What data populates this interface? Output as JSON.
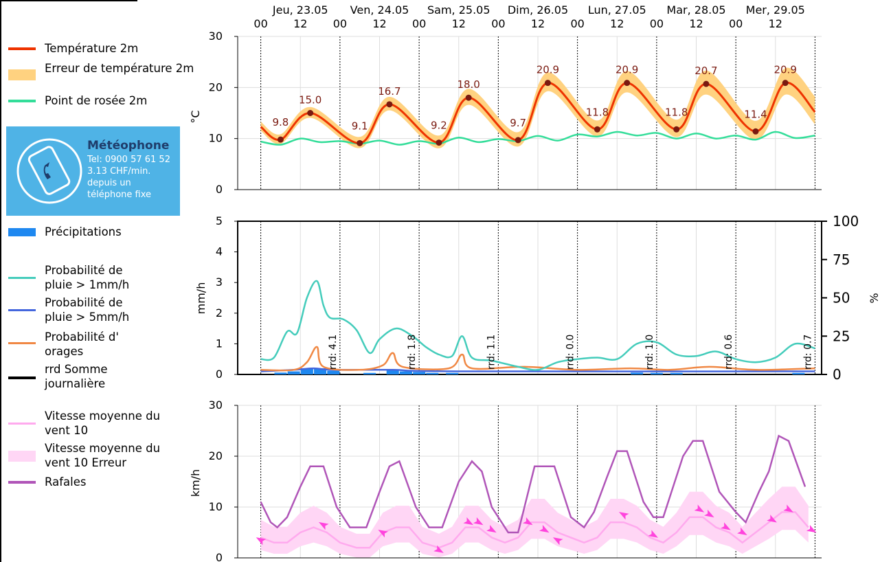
{
  "legend": {
    "items": [
      {
        "label": "Température 2m",
        "color": "#ee3300"
      },
      {
        "label": "Erreur de température 2m",
        "color": "#ffd280"
      },
      {
        "label": "Point de rosée 2m",
        "color": "#33dd99"
      },
      {
        "label": "Précipitations",
        "color": "#1e88f0"
      },
      {
        "label": "Probabilité de pluie > 1mm/h",
        "color": "#44ccbb"
      },
      {
        "label": "Probabilité de pluie > 5mm/h",
        "color": "#4466dd"
      },
      {
        "label": "Probabilité d' orages",
        "color": "#f08844"
      },
      {
        "label": "rrd Somme journalière",
        "color": "#000000"
      },
      {
        "label": "Vitesse moyenne du vent 10",
        "color": "#ffaaee"
      },
      {
        "label": "Vitesse moyenne du vent 10 Erreur",
        "color": "#ffd6f5"
      },
      {
        "label": "Rafales",
        "color": "#b055b8"
      }
    ]
  },
  "promo": {
    "brand": "Météophone",
    "lines": [
      "Tel: 0900 57 61 52",
      "3.13 CHF/min.",
      "depuis un",
      "téléphone fixe"
    ],
    "icon": "phone-icon"
  },
  "chart_data": [
    {
      "type": "line",
      "ylabel": "°C",
      "ylim": [
        0,
        30
      ],
      "yticks": [
        "0",
        "10",
        "20",
        "30"
      ],
      "days": [
        "Jeu, 23.05",
        "Ven, 24.05",
        "Sam, 25.05",
        "Dim, 26.05",
        "Lun, 27.05",
        "Mar, 28.05",
        "Mer, 29.05"
      ],
      "hour_ticks": [
        "00",
        "12",
        "00",
        "12",
        "00",
        "12",
        "00",
        "12",
        "00",
        "12",
        "00",
        "12",
        "00",
        "12"
      ],
      "x_range_hours": [
        0,
        168
      ],
      "grid": true,
      "extremes": [
        {
          "h": 6,
          "v": 9.8,
          "label": "9.8"
        },
        {
          "h": 15,
          "v": 15.0,
          "label": "15.0"
        },
        {
          "h": 30,
          "v": 9.1,
          "label": "9.1"
        },
        {
          "h": 39,
          "v": 16.7,
          "label": "16.7"
        },
        {
          "h": 54,
          "v": 9.2,
          "label": "9.2"
        },
        {
          "h": 63,
          "v": 18.0,
          "label": "18.0"
        },
        {
          "h": 78,
          "v": 9.7,
          "label": "9.7"
        },
        {
          "h": 87,
          "v": 20.9,
          "label": "20.9"
        },
        {
          "h": 102,
          "v": 11.8,
          "label": "11.8"
        },
        {
          "h": 111,
          "v": 20.9,
          "label": "20.9"
        },
        {
          "h": 126,
          "v": 11.8,
          "label": "11.8"
        },
        {
          "h": 135,
          "v": 20.7,
          "label": "20.7"
        },
        {
          "h": 150,
          "v": 11.4,
          "label": "11.4"
        },
        {
          "h": 159,
          "v": 20.9,
          "label": "20.9"
        }
      ],
      "temperature": {
        "start": 12.3,
        "end": 15.2
      },
      "temperature_error_halfwidth": [
        1.0,
        3.0
      ],
      "dewpoint": [
        {
          "h": 0,
          "v": 9.4
        },
        {
          "h": 6,
          "v": 8.8
        },
        {
          "h": 12,
          "v": 10.0
        },
        {
          "h": 18,
          "v": 9.3
        },
        {
          "h": 24,
          "v": 9.5
        },
        {
          "h": 30,
          "v": 9.0
        },
        {
          "h": 36,
          "v": 9.6
        },
        {
          "h": 42,
          "v": 8.8
        },
        {
          "h": 48,
          "v": 9.5
        },
        {
          "h": 54,
          "v": 9.0
        },
        {
          "h": 60,
          "v": 10.2
        },
        {
          "h": 66,
          "v": 9.3
        },
        {
          "h": 72,
          "v": 9.9
        },
        {
          "h": 78,
          "v": 9.5
        },
        {
          "h": 84,
          "v": 10.5
        },
        {
          "h": 90,
          "v": 9.6
        },
        {
          "h": 96,
          "v": 10.8
        },
        {
          "h": 102,
          "v": 10.4
        },
        {
          "h": 108,
          "v": 11.3
        },
        {
          "h": 114,
          "v": 10.6
        },
        {
          "h": 120,
          "v": 11.1
        },
        {
          "h": 126,
          "v": 10.0
        },
        {
          "h": 132,
          "v": 11.0
        },
        {
          "h": 138,
          "v": 10.0
        },
        {
          "h": 144,
          "v": 10.6
        },
        {
          "h": 150,
          "v": 9.8
        },
        {
          "h": 156,
          "v": 11.3
        },
        {
          "h": 162,
          "v": 10.1
        },
        {
          "h": 168,
          "v": 10.6
        }
      ]
    },
    {
      "type": "line",
      "ylabel": "mm/h",
      "ylabel_right": "%",
      "ylim": [
        0,
        5
      ],
      "ylim_right": [
        0,
        100
      ],
      "yticks": [
        "0",
        "1",
        "2",
        "3",
        "4",
        "5"
      ],
      "yticks_right": [
        "0",
        "25",
        "50",
        "75",
        "100"
      ],
      "rrd_labels": [
        {
          "h": 24,
          "label": "rrd: 4.1"
        },
        {
          "h": 48,
          "label": "rrd: 1.8"
        },
        {
          "h": 72,
          "label": "rrd: 1.1"
        },
        {
          "h": 96,
          "label": "rrd: 0.0"
        },
        {
          "h": 120,
          "label": "rrd: 1.0"
        },
        {
          "h": 144,
          "label": "rrd: 0.6"
        },
        {
          "h": 168,
          "label": "rrd: 0.7"
        }
      ],
      "prob_rain_1mm": [
        {
          "h": 0,
          "v": 10
        },
        {
          "h": 4,
          "v": 11
        },
        {
          "h": 8,
          "v": 28
        },
        {
          "h": 11,
          "v": 27
        },
        {
          "h": 14,
          "v": 50
        },
        {
          "h": 17,
          "v": 61
        },
        {
          "h": 19,
          "v": 45
        },
        {
          "h": 21,
          "v": 37
        },
        {
          "h": 25,
          "v": 36
        },
        {
          "h": 29,
          "v": 29
        },
        {
          "h": 33,
          "v": 14
        },
        {
          "h": 36,
          "v": 23
        },
        {
          "h": 41,
          "v": 30
        },
        {
          "h": 46,
          "v": 25
        },
        {
          "h": 50,
          "v": 18
        },
        {
          "h": 54,
          "v": 13
        },
        {
          "h": 58,
          "v": 12
        },
        {
          "h": 61,
          "v": 25
        },
        {
          "h": 64,
          "v": 11
        },
        {
          "h": 70,
          "v": 9
        },
        {
          "h": 78,
          "v": 5
        },
        {
          "h": 84,
          "v": 3
        },
        {
          "h": 90,
          "v": 8
        },
        {
          "h": 96,
          "v": 10
        },
        {
          "h": 102,
          "v": 11
        },
        {
          "h": 108,
          "v": 10
        },
        {
          "h": 114,
          "v": 20
        },
        {
          "h": 120,
          "v": 21
        },
        {
          "h": 126,
          "v": 13
        },
        {
          "h": 132,
          "v": 12
        },
        {
          "h": 138,
          "v": 15
        },
        {
          "h": 144,
          "v": 10
        },
        {
          "h": 150,
          "v": 8
        },
        {
          "h": 156,
          "v": 11
        },
        {
          "h": 162,
          "v": 20
        },
        {
          "h": 168,
          "v": 17
        }
      ],
      "prob_rain_5mm": [
        {
          "h": 0,
          "v": 2
        },
        {
          "h": 10,
          "v": 3
        },
        {
          "h": 16,
          "v": 4
        },
        {
          "h": 22,
          "v": 3
        },
        {
          "h": 40,
          "v": 3
        },
        {
          "h": 60,
          "v": 2
        },
        {
          "h": 168,
          "v": 2
        }
      ],
      "prob_thunder": [
        {
          "h": 0,
          "v": 3
        },
        {
          "h": 10,
          "v": 3
        },
        {
          "h": 14,
          "v": 8
        },
        {
          "h": 17,
          "v": 18
        },
        {
          "h": 19,
          "v": 5
        },
        {
          "h": 30,
          "v": 3
        },
        {
          "h": 37,
          "v": 6
        },
        {
          "h": 40,
          "v": 14
        },
        {
          "h": 43,
          "v": 5
        },
        {
          "h": 57,
          "v": 4
        },
        {
          "h": 61,
          "v": 13
        },
        {
          "h": 64,
          "v": 4
        },
        {
          "h": 80,
          "v": 5
        },
        {
          "h": 96,
          "v": 3
        },
        {
          "h": 112,
          "v": 4
        },
        {
          "h": 124,
          "v": 3
        },
        {
          "h": 136,
          "v": 5
        },
        {
          "h": 150,
          "v": 3
        },
        {
          "h": 168,
          "v": 4
        }
      ],
      "precip_bars": [
        {
          "h": 6,
          "v": 0.06
        },
        {
          "h": 10,
          "v": 0.1
        },
        {
          "h": 14,
          "v": 0.2
        },
        {
          "h": 18,
          "v": 0.2
        },
        {
          "h": 22,
          "v": 0.12
        },
        {
          "h": 33,
          "v": 0.05
        },
        {
          "h": 40,
          "v": 0.15
        },
        {
          "h": 44,
          "v": 0.1
        },
        {
          "h": 48,
          "v": 0.08
        },
        {
          "h": 52,
          "v": 0.05
        },
        {
          "h": 58,
          "v": 0.05
        },
        {
          "h": 114,
          "v": 0.06
        },
        {
          "h": 120,
          "v": 0.05
        },
        {
          "h": 126,
          "v": 0.05
        },
        {
          "h": 163,
          "v": 0.05
        }
      ]
    },
    {
      "type": "line",
      "ylabel": "km/h",
      "ylim": [
        0,
        30
      ],
      "yticks": [
        "0",
        "10",
        "20",
        "30"
      ],
      "gusts": [
        {
          "h": 0,
          "v": 11
        },
        {
          "h": 3,
          "v": 7
        },
        {
          "h": 5,
          "v": 6
        },
        {
          "h": 8,
          "v": 8
        },
        {
          "h": 12,
          "v": 14
        },
        {
          "h": 15,
          "v": 18
        },
        {
          "h": 19,
          "v": 18
        },
        {
          "h": 23,
          "v": 10
        },
        {
          "h": 27,
          "v": 6
        },
        {
          "h": 32,
          "v": 6
        },
        {
          "h": 36,
          "v": 13
        },
        {
          "h": 39,
          "v": 18
        },
        {
          "h": 42,
          "v": 19
        },
        {
          "h": 47,
          "v": 10
        },
        {
          "h": 51,
          "v": 6
        },
        {
          "h": 55,
          "v": 6
        },
        {
          "h": 60,
          "v": 15
        },
        {
          "h": 64,
          "v": 19
        },
        {
          "h": 67,
          "v": 17
        },
        {
          "h": 70,
          "v": 10
        },
        {
          "h": 75,
          "v": 5
        },
        {
          "h": 78,
          "v": 5
        },
        {
          "h": 83,
          "v": 18
        },
        {
          "h": 89,
          "v": 18
        },
        {
          "h": 94,
          "v": 8
        },
        {
          "h": 98,
          "v": 6
        },
        {
          "h": 101,
          "v": 9
        },
        {
          "h": 105,
          "v": 16
        },
        {
          "h": 108,
          "v": 21
        },
        {
          "h": 111,
          "v": 21
        },
        {
          "h": 116,
          "v": 11
        },
        {
          "h": 119,
          "v": 8
        },
        {
          "h": 122,
          "v": 8
        },
        {
          "h": 128,
          "v": 20
        },
        {
          "h": 131,
          "v": 23
        },
        {
          "h": 134,
          "v": 23
        },
        {
          "h": 139,
          "v": 13
        },
        {
          "h": 144,
          "v": 9
        },
        {
          "h": 147,
          "v": 7
        },
        {
          "h": 151,
          "v": 13
        },
        {
          "h": 154,
          "v": 17
        },
        {
          "h": 157,
          "v": 24
        },
        {
          "h": 160,
          "v": 23
        },
        {
          "h": 165,
          "v": 14
        }
      ],
      "mean_wind": [
        {
          "h": 0,
          "v": 4
        },
        {
          "h": 4,
          "v": 3
        },
        {
          "h": 8,
          "v": 3
        },
        {
          "h": 12,
          "v": 5
        },
        {
          "h": 16,
          "v": 6
        },
        {
          "h": 20,
          "v": 5
        },
        {
          "h": 24,
          "v": 3
        },
        {
          "h": 29,
          "v": 2
        },
        {
          "h": 33,
          "v": 2
        },
        {
          "h": 37,
          "v": 5
        },
        {
          "h": 41,
          "v": 6
        },
        {
          "h": 45,
          "v": 6
        },
        {
          "h": 49,
          "v": 3
        },
        {
          "h": 54,
          "v": 2
        },
        {
          "h": 58,
          "v": 3
        },
        {
          "h": 62,
          "v": 6
        },
        {
          "h": 66,
          "v": 6
        },
        {
          "h": 70,
          "v": 4
        },
        {
          "h": 74,
          "v": 3
        },
        {
          "h": 78,
          "v": 4
        },
        {
          "h": 82,
          "v": 7
        },
        {
          "h": 86,
          "v": 7
        },
        {
          "h": 90,
          "v": 5
        },
        {
          "h": 94,
          "v": 4
        },
        {
          "h": 98,
          "v": 3
        },
        {
          "h": 102,
          "v": 4
        },
        {
          "h": 106,
          "v": 7
        },
        {
          "h": 110,
          "v": 7
        },
        {
          "h": 114,
          "v": 6
        },
        {
          "h": 118,
          "v": 4
        },
        {
          "h": 122,
          "v": 3
        },
        {
          "h": 126,
          "v": 5
        },
        {
          "h": 130,
          "v": 8
        },
        {
          "h": 134,
          "v": 8
        },
        {
          "h": 138,
          "v": 6
        },
        {
          "h": 142,
          "v": 5
        },
        {
          "h": 146,
          "v": 3
        },
        {
          "h": 150,
          "v": 5
        },
        {
          "h": 154,
          "v": 7
        },
        {
          "h": 158,
          "v": 9
        },
        {
          "h": 162,
          "v": 9
        },
        {
          "h": 166,
          "v": 6
        }
      ],
      "mean_wind_error_halfwidth": [
        2,
        5
      ],
      "arrows": [
        {
          "h": 0,
          "v": 3.5,
          "dir": "up"
        },
        {
          "h": 19,
          "v": 6.5,
          "dir": "up"
        },
        {
          "h": 37,
          "v": 5,
          "dir": "up"
        },
        {
          "h": 54,
          "v": 1.5,
          "dir": "down"
        },
        {
          "h": 63,
          "v": 7,
          "dir": "down"
        },
        {
          "h": 66,
          "v": 7,
          "dir": "down"
        },
        {
          "h": 70,
          "v": 5.5,
          "dir": "down"
        },
        {
          "h": 81,
          "v": 7,
          "dir": "down"
        },
        {
          "h": 86,
          "v": 5.5,
          "dir": "down"
        },
        {
          "h": 90,
          "v": 3.5,
          "dir": "up"
        },
        {
          "h": 110,
          "v": 8.5,
          "dir": "up"
        },
        {
          "h": 119,
          "v": 4.5,
          "dir": "down"
        },
        {
          "h": 133,
          "v": 9.5,
          "dir": "down"
        },
        {
          "h": 136,
          "v": 8.5,
          "dir": "down"
        },
        {
          "h": 141,
          "v": 6,
          "dir": "down"
        },
        {
          "h": 146,
          "v": 5,
          "dir": "down"
        },
        {
          "h": 155,
          "v": 7.5,
          "dir": "down"
        },
        {
          "h": 160,
          "v": 9.5,
          "dir": "down"
        },
        {
          "h": 167,
          "v": 5.5,
          "dir": "down"
        }
      ]
    }
  ]
}
